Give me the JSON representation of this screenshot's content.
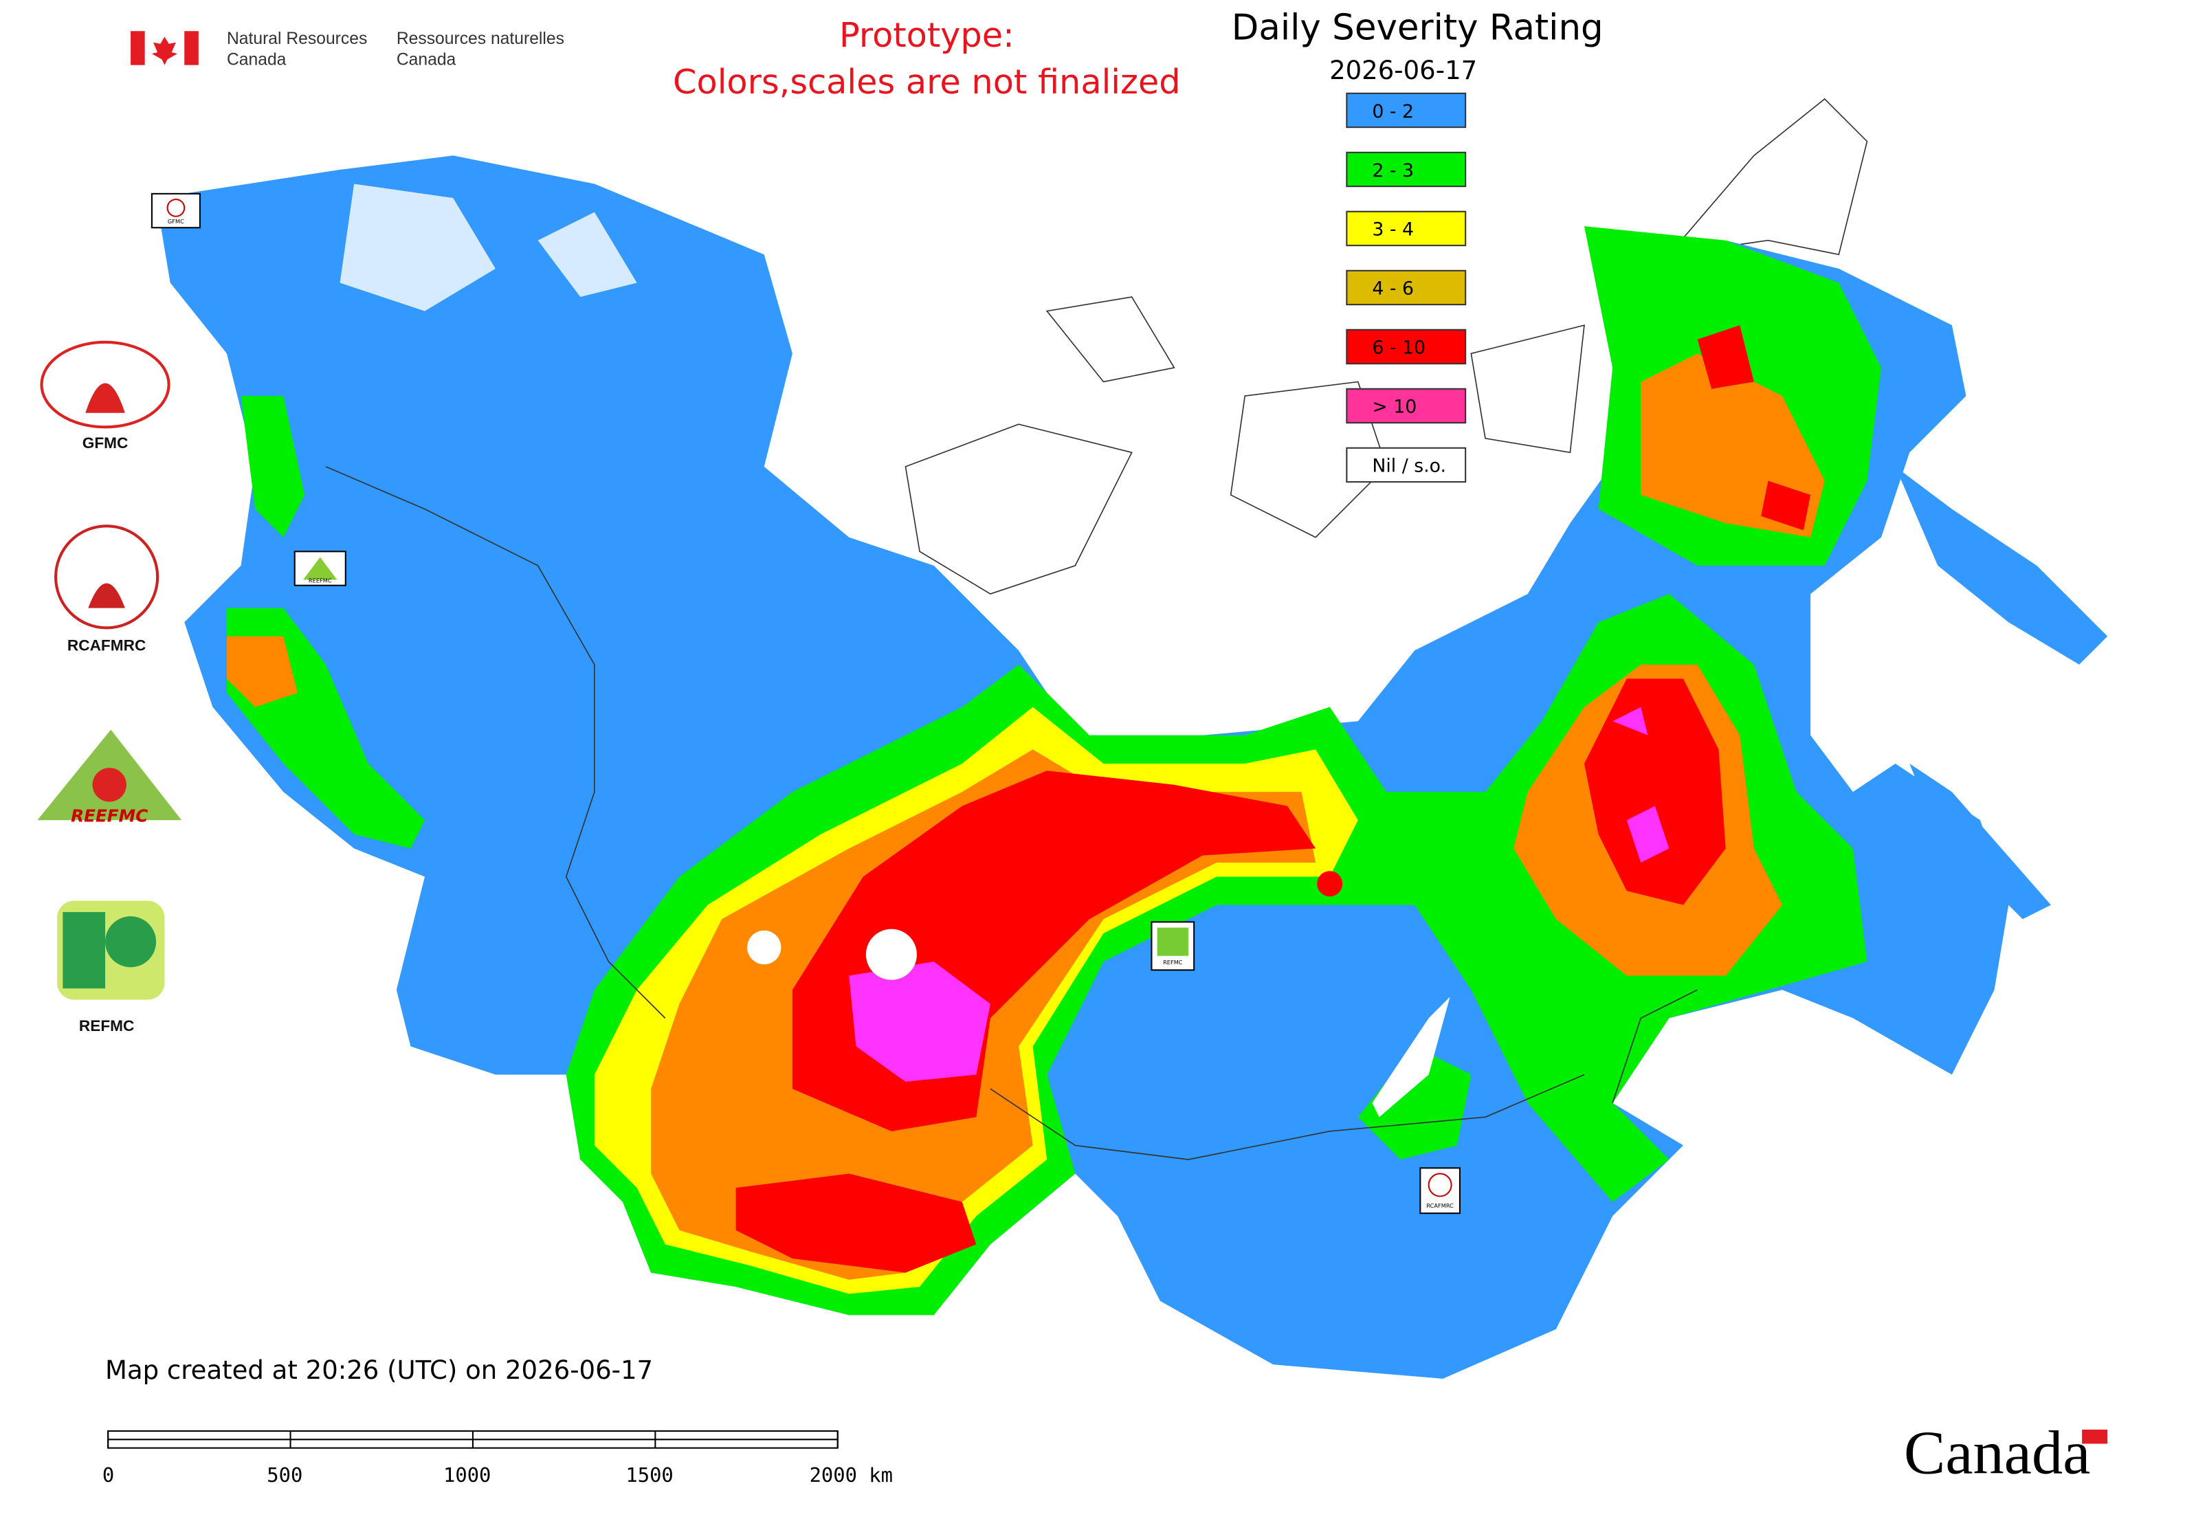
{
  "header": {
    "agency_en": [
      "Natural Resources",
      "Canada"
    ],
    "agency_fr": [
      "Ressources naturelles",
      "Canada"
    ],
    "prototype_note": [
      "Prototype:",
      "Colors,scales are not finalized"
    ]
  },
  "legend": {
    "title": "Daily Severity Rating",
    "date": "2026-06-17",
    "items": [
      {
        "label": "0 - 2",
        "color": "#3399ff"
      },
      {
        "label": "2 - 3",
        "color": "#00ee00"
      },
      {
        "label": "3 - 4",
        "color": "#ffff00"
      },
      {
        "label": "4 - 6",
        "color": "#ddbb00"
      },
      {
        "label": "6 - 10",
        "color": "#ff0000"
      },
      {
        "label": "> 10",
        "color": "#ff3399"
      },
      {
        "label": "Nil / s.o.",
        "color": "#ffffff"
      }
    ]
  },
  "logos": [
    "GFMC",
    "RCAFMRC",
    "REEFMC",
    "REFMC"
  ],
  "map_labels": [
    "GFMC",
    "REEFMC",
    "REFMC",
    "RCAFMRC"
  ],
  "footer": {
    "created": "Map created at 20:26 (UTC) on 2026-06-17",
    "scale_labels": [
      "0",
      "500",
      "1000",
      "1500",
      "2000 km"
    ],
    "wordmark": "Canada"
  }
}
